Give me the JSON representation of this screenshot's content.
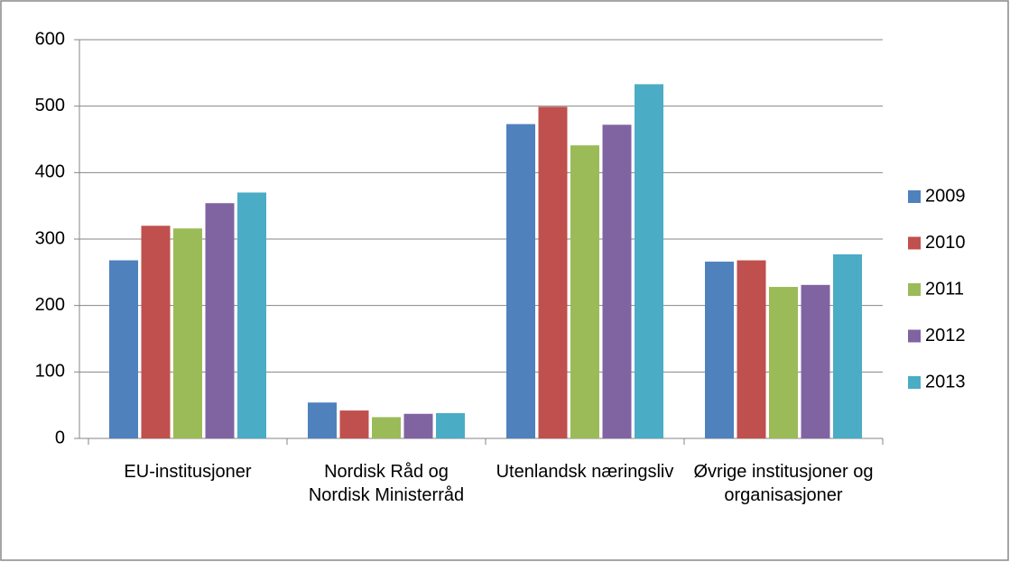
{
  "chart_data": {
    "type": "bar",
    "categories": [
      "EU-institusjoner",
      "Nordisk Råd og Nordisk Ministerråd",
      "Utenlandsk næringsliv",
      "Øvrige institusjoner og organisasjoner"
    ],
    "series": [
      {
        "name": "2009",
        "color": "#4f81bd",
        "values": [
          268,
          54,
          473,
          266
        ]
      },
      {
        "name": "2010",
        "color": "#c0504d",
        "values": [
          320,
          42,
          499,
          268
        ]
      },
      {
        "name": "2011",
        "color": "#9bbb59",
        "values": [
          316,
          32,
          441,
          228
        ]
      },
      {
        "name": "2012",
        "color": "#8064a2",
        "values": [
          354,
          37,
          472,
          231
        ]
      },
      {
        "name": "2013",
        "color": "#4bacc6",
        "values": [
          370,
          38,
          533,
          277
        ]
      }
    ],
    "ylim": [
      0,
      600
    ],
    "yticks": [
      0,
      100,
      200,
      300,
      400,
      500,
      600
    ],
    "grid": true,
    "legend": "right"
  }
}
